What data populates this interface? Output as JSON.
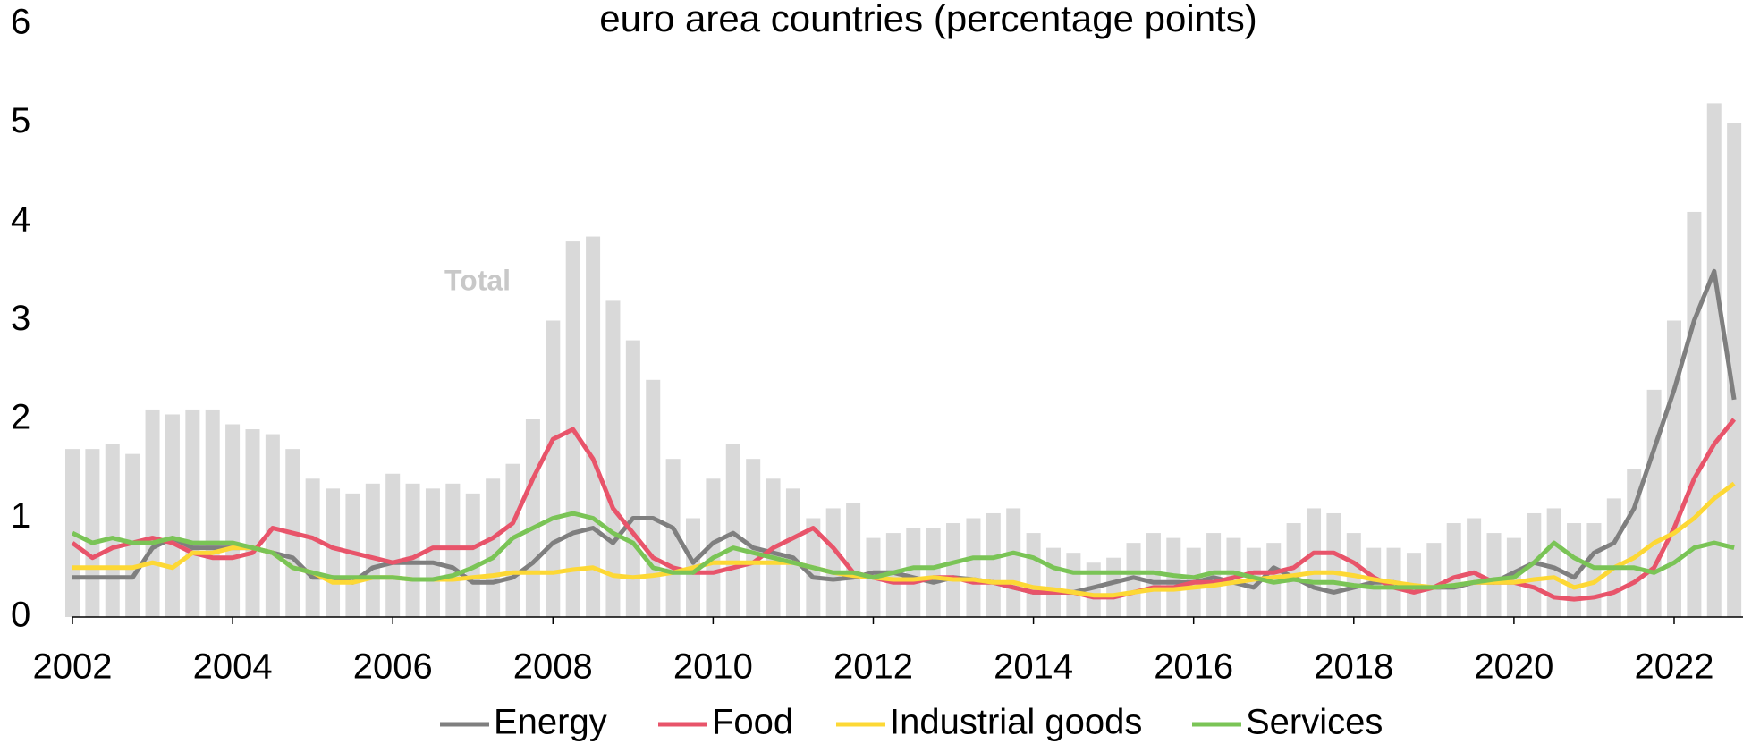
{
  "chart_data": {
    "type": "combo",
    "title": "euro area countries (percentage points)",
    "x": [
      2002,
      2002.25,
      2002.5,
      2002.75,
      2003,
      2003.25,
      2003.5,
      2003.75,
      2004,
      2004.25,
      2004.5,
      2004.75,
      2005,
      2005.25,
      2005.5,
      2005.75,
      2006,
      2006.25,
      2006.5,
      2006.75,
      2007,
      2007.25,
      2007.5,
      2007.75,
      2008,
      2008.25,
      2008.5,
      2008.75,
      2009,
      2009.25,
      2009.5,
      2009.75,
      2010,
      2010.25,
      2010.5,
      2010.75,
      2011,
      2011.25,
      2011.5,
      2011.75,
      2012,
      2012.25,
      2012.5,
      2012.75,
      2013,
      2013.25,
      2013.5,
      2013.75,
      2014,
      2014.25,
      2014.5,
      2014.75,
      2015,
      2015.25,
      2015.5,
      2015.75,
      2016,
      2016.25,
      2016.5,
      2016.75,
      2017,
      2017.25,
      2017.5,
      2017.75,
      2018,
      2018.25,
      2018.5,
      2018.75,
      2019,
      2019.25,
      2019.5,
      2019.75,
      2020,
      2020.25,
      2020.5,
      2020.75,
      2021,
      2021.25,
      2021.5,
      2021.75,
      2022,
      2022.25,
      2022.5,
      2022.75
    ],
    "series": [
      {
        "name": "Total",
        "type": "bar",
        "color": "#d9d9d9",
        "values": [
          1.7,
          1.7,
          1.75,
          1.65,
          2.1,
          2.05,
          2.1,
          2.1,
          1.95,
          1.9,
          1.85,
          1.7,
          1.4,
          1.3,
          1.25,
          1.35,
          1.45,
          1.35,
          1.3,
          1.35,
          1.25,
          1.4,
          1.55,
          2.0,
          3.0,
          3.8,
          3.85,
          3.2,
          2.8,
          2.4,
          1.6,
          1.0,
          1.4,
          1.75,
          1.6,
          1.4,
          1.3,
          1.0,
          1.1,
          1.15,
          0.8,
          0.85,
          0.9,
          0.9,
          0.95,
          1.0,
          1.05,
          1.1,
          0.85,
          0.7,
          0.65,
          0.55,
          0.6,
          0.75,
          0.85,
          0.8,
          0.7,
          0.85,
          0.8,
          0.7,
          0.75,
          0.95,
          1.1,
          1.05,
          0.85,
          0.7,
          0.7,
          0.65,
          0.75,
          0.95,
          1.0,
          0.85,
          0.8,
          1.05,
          1.1,
          0.95,
          0.95,
          1.2,
          1.5,
          2.3,
          3.0,
          4.1,
          5.2,
          5.0
        ]
      },
      {
        "name": "Energy",
        "type": "line",
        "color": "#7f7f7f",
        "values": [
          0.4,
          0.4,
          0.4,
          0.4,
          0.7,
          0.8,
          0.7,
          0.7,
          0.7,
          0.7,
          0.65,
          0.6,
          0.4,
          0.4,
          0.35,
          0.5,
          0.55,
          0.55,
          0.55,
          0.5,
          0.35,
          0.35,
          0.4,
          0.55,
          0.75,
          0.85,
          0.9,
          0.75,
          1.0,
          1.0,
          0.9,
          0.55,
          0.75,
          0.85,
          0.7,
          0.65,
          0.6,
          0.4,
          0.38,
          0.4,
          0.45,
          0.45,
          0.4,
          0.35,
          0.4,
          0.38,
          0.35,
          0.3,
          0.25,
          0.25,
          0.25,
          0.3,
          0.35,
          0.4,
          0.35,
          0.35,
          0.35,
          0.4,
          0.35,
          0.3,
          0.5,
          0.4,
          0.3,
          0.25,
          0.3,
          0.35,
          0.35,
          0.3,
          0.3,
          0.3,
          0.35,
          0.35,
          0.45,
          0.55,
          0.5,
          0.4,
          0.65,
          0.75,
          1.1,
          1.7,
          2.3,
          3.0,
          3.5,
          2.2
        ]
      },
      {
        "name": "Food",
        "type": "line",
        "color": "#e8546a",
        "values": [
          0.75,
          0.6,
          0.7,
          0.75,
          0.8,
          0.75,
          0.65,
          0.6,
          0.6,
          0.65,
          0.9,
          0.85,
          0.8,
          0.7,
          0.65,
          0.6,
          0.55,
          0.6,
          0.7,
          0.7,
          0.7,
          0.8,
          0.95,
          1.4,
          1.8,
          1.9,
          1.6,
          1.1,
          0.85,
          0.6,
          0.5,
          0.45,
          0.45,
          0.5,
          0.55,
          0.7,
          0.8,
          0.9,
          0.7,
          0.45,
          0.4,
          0.35,
          0.35,
          0.4,
          0.4,
          0.35,
          0.35,
          0.3,
          0.25,
          0.25,
          0.25,
          0.2,
          0.2,
          0.25,
          0.3,
          0.3,
          0.35,
          0.35,
          0.4,
          0.45,
          0.45,
          0.5,
          0.65,
          0.65,
          0.55,
          0.4,
          0.3,
          0.25,
          0.3,
          0.4,
          0.45,
          0.35,
          0.35,
          0.3,
          0.2,
          0.18,
          0.2,
          0.25,
          0.35,
          0.5,
          0.9,
          1.4,
          1.75,
          2.0
        ]
      },
      {
        "name": "Industrial goods",
        "type": "line",
        "color": "#fdd835",
        "values": [
          0.5,
          0.5,
          0.5,
          0.5,
          0.55,
          0.5,
          0.65,
          0.65,
          0.7,
          0.7,
          0.65,
          0.5,
          0.45,
          0.35,
          0.35,
          0.4,
          0.4,
          0.38,
          0.38,
          0.38,
          0.4,
          0.42,
          0.45,
          0.45,
          0.45,
          0.48,
          0.5,
          0.42,
          0.4,
          0.42,
          0.45,
          0.5,
          0.55,
          0.55,
          0.55,
          0.55,
          0.55,
          0.5,
          0.45,
          0.42,
          0.4,
          0.38,
          0.38,
          0.4,
          0.38,
          0.38,
          0.35,
          0.35,
          0.3,
          0.28,
          0.25,
          0.22,
          0.22,
          0.25,
          0.28,
          0.28,
          0.3,
          0.32,
          0.35,
          0.38,
          0.4,
          0.42,
          0.45,
          0.45,
          0.42,
          0.38,
          0.35,
          0.32,
          0.3,
          0.32,
          0.35,
          0.35,
          0.35,
          0.38,
          0.4,
          0.3,
          0.35,
          0.5,
          0.6,
          0.75,
          0.85,
          1.0,
          1.2,
          1.35
        ]
      },
      {
        "name": "Services",
        "type": "line",
        "color": "#7ac456",
        "values": [
          0.85,
          0.75,
          0.8,
          0.75,
          0.75,
          0.8,
          0.75,
          0.75,
          0.75,
          0.7,
          0.65,
          0.5,
          0.45,
          0.4,
          0.4,
          0.4,
          0.4,
          0.38,
          0.38,
          0.42,
          0.5,
          0.6,
          0.8,
          0.9,
          1.0,
          1.05,
          1.0,
          0.85,
          0.75,
          0.5,
          0.45,
          0.45,
          0.6,
          0.7,
          0.65,
          0.6,
          0.55,
          0.5,
          0.45,
          0.45,
          0.4,
          0.45,
          0.5,
          0.5,
          0.55,
          0.6,
          0.6,
          0.65,
          0.6,
          0.5,
          0.45,
          0.45,
          0.45,
          0.45,
          0.45,
          0.42,
          0.4,
          0.45,
          0.45,
          0.4,
          0.35,
          0.38,
          0.35,
          0.35,
          0.32,
          0.3,
          0.3,
          0.3,
          0.3,
          0.32,
          0.35,
          0.38,
          0.4,
          0.55,
          0.75,
          0.6,
          0.5,
          0.5,
          0.5,
          0.45,
          0.55,
          0.7,
          0.75,
          0.7
        ]
      }
    ],
    "xlim": [
      2002,
      2022.86
    ],
    "xticks": [
      2002,
      2004,
      2006,
      2008,
      2010,
      2012,
      2014,
      2016,
      2018,
      2020,
      2022
    ],
    "ylim": [
      0,
      6
    ],
    "yticks": [
      0,
      1,
      2,
      3,
      4,
      5,
      6
    ],
    "grid": false,
    "legend": "bottom"
  }
}
